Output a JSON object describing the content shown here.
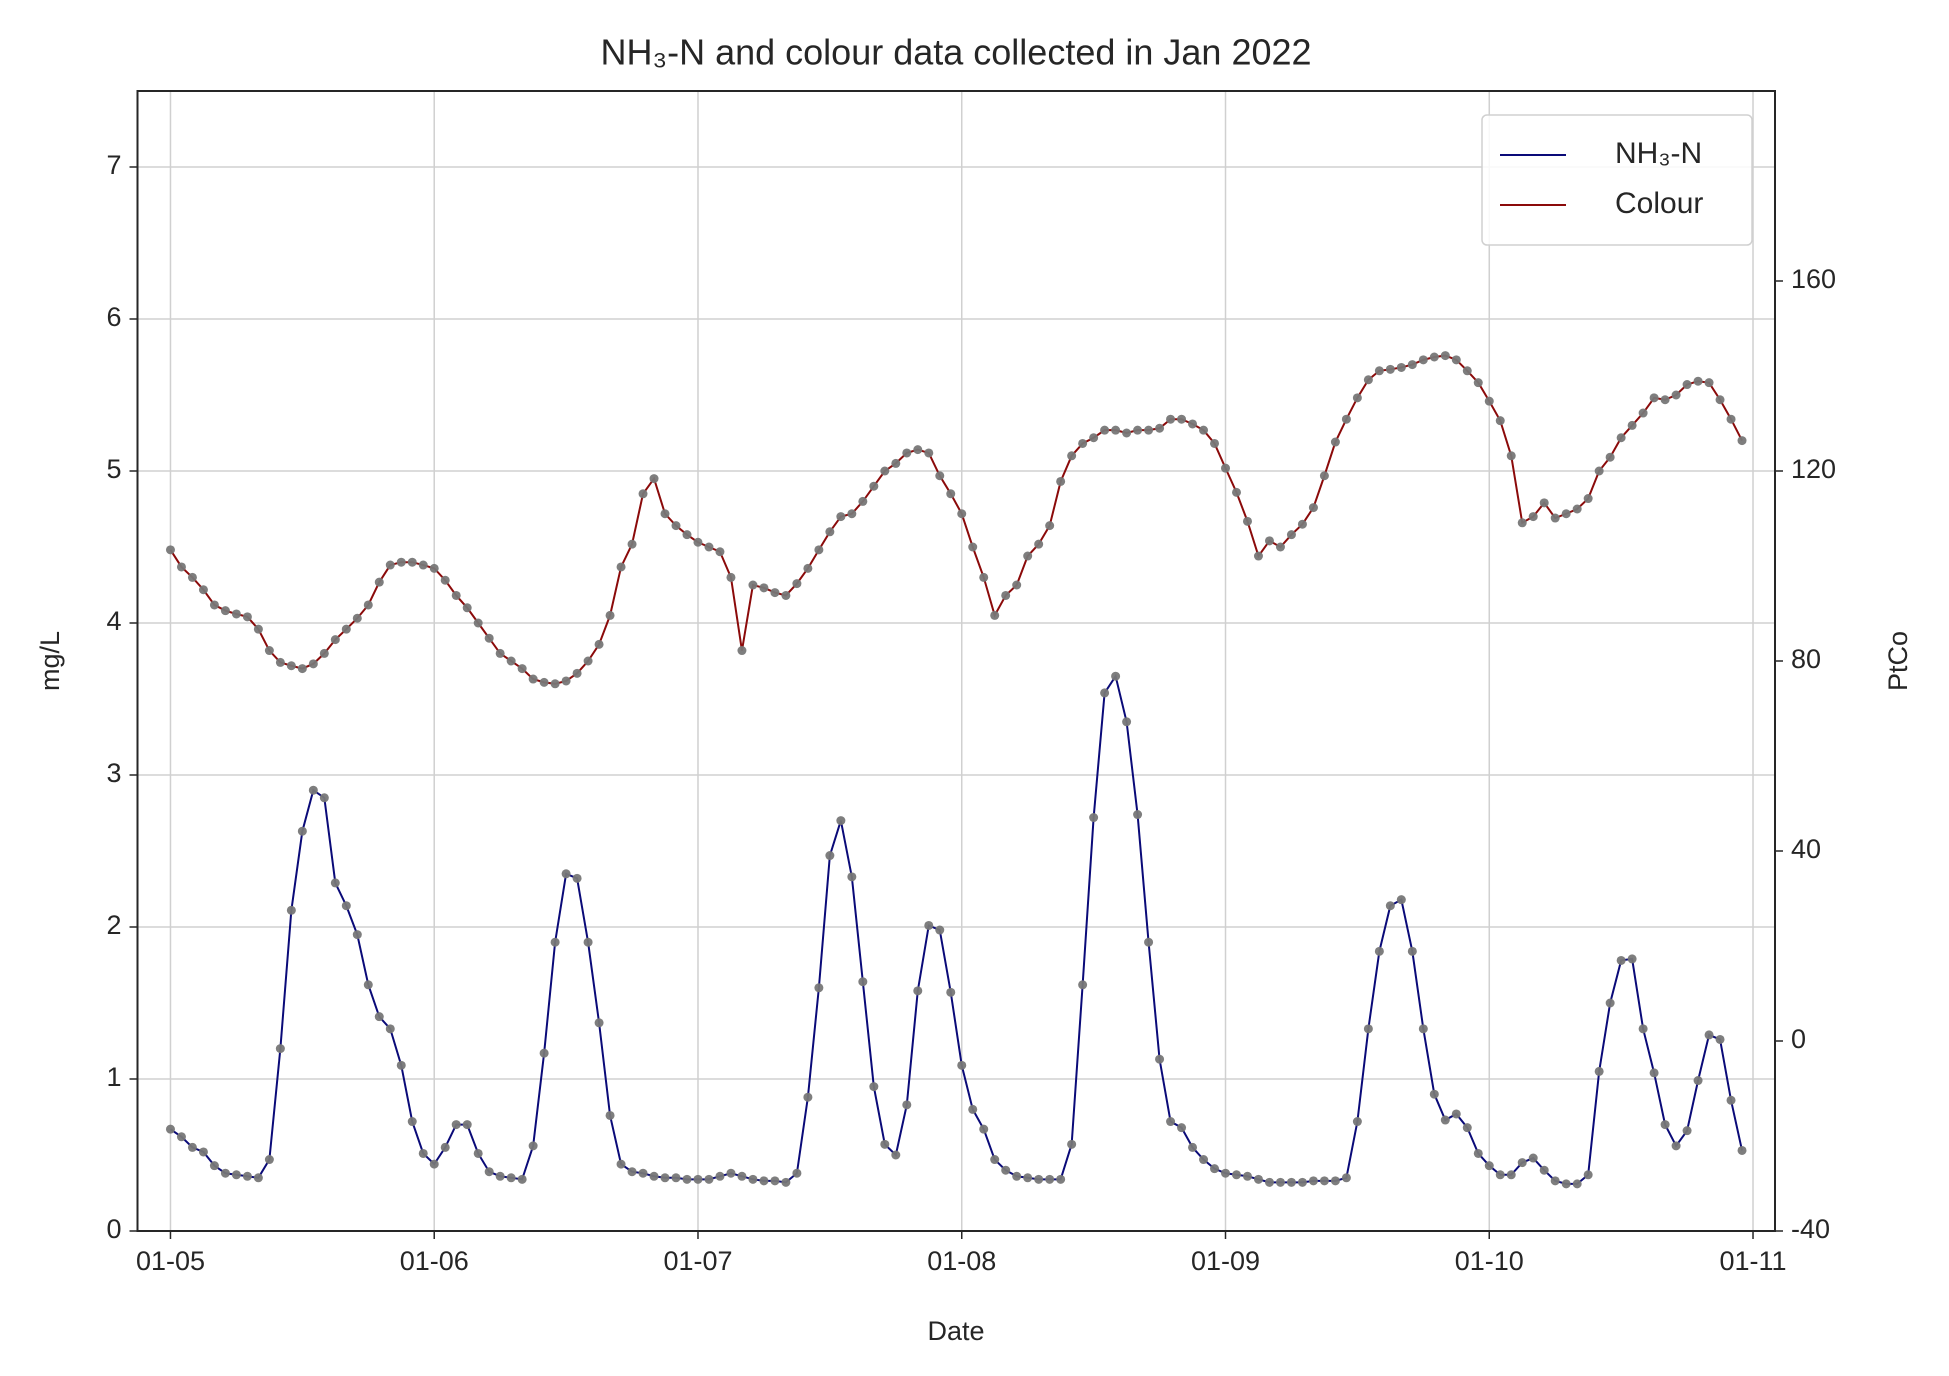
{
  "chart_data": {
    "type": "line",
    "title": "NH₃-N and colour data collected in Jan 2022",
    "xlabel": "Date",
    "ylabel": "mg/L",
    "y2label": "PtCo",
    "x": [
      0,
      1,
      2,
      3,
      4,
      5,
      6,
      7,
      8,
      9,
      10,
      11,
      12,
      13,
      14,
      15,
      16,
      17,
      18,
      19,
      20,
      21,
      22,
      23,
      24,
      25,
      26,
      27,
      28,
      29,
      30,
      31,
      32,
      33,
      34,
      35,
      36,
      37,
      38,
      39,
      40,
      41,
      42,
      43,
      44,
      45,
      46,
      47,
      48,
      49,
      50,
      51,
      52,
      53,
      54,
      55,
      56,
      57,
      58,
      59,
      60,
      61,
      62,
      63,
      64,
      65,
      66,
      67,
      68,
      69,
      70,
      71,
      72,
      73,
      74,
      75,
      76,
      77,
      78,
      79,
      80,
      81,
      82,
      83,
      84,
      85,
      86,
      87,
      88,
      89,
      90,
      91,
      92,
      93,
      94,
      95,
      96,
      97,
      98,
      99,
      100,
      101,
      102,
      103,
      104,
      105,
      106,
      107,
      108,
      109,
      110,
      111,
      112,
      113,
      114,
      115,
      116,
      117,
      118,
      119,
      120,
      121,
      122,
      123,
      124,
      125,
      126,
      127,
      128,
      129,
      130,
      131,
      132,
      133,
      134,
      135,
      136,
      137,
      138,
      139,
      140,
      141,
      142,
      143
    ],
    "xlim": [
      -3,
      146
    ],
    "xticks": [
      {
        "value": 0,
        "label": "01-05"
      },
      {
        "value": 24,
        "label": "01-06"
      },
      {
        "value": 48,
        "label": "01-07"
      },
      {
        "value": 72,
        "label": "01-08"
      },
      {
        "value": 96,
        "label": "01-09"
      },
      {
        "value": 120,
        "label": "01-10"
      },
      {
        "value": 144,
        "label": "01-11"
      }
    ],
    "ylim": [
      0,
      7.5
    ],
    "yticks": [
      0,
      1,
      2,
      3,
      4,
      5,
      6,
      7
    ],
    "y2lim": [
      -40,
      200
    ],
    "y2ticks": [
      -40,
      0,
      40,
      80,
      120,
      160
    ],
    "grid": true,
    "legend": "upper right",
    "marker_color": "#777777",
    "series": [
      {
        "name": "NH₃-N",
        "color": "#0a0a78",
        "values": [
          0.67,
          0.62,
          0.55,
          0.52,
          0.43,
          0.38,
          0.37,
          0.36,
          0.35,
          0.47,
          1.2,
          2.11,
          2.63,
          2.9,
          2.85,
          2.29,
          2.14,
          1.95,
          1.62,
          1.41,
          1.33,
          1.09,
          0.72,
          0.51,
          0.44,
          0.55,
          0.7,
          0.7,
          0.51,
          0.39,
          0.36,
          0.35,
          0.34,
          0.56,
          1.17,
          1.9,
          2.35,
          2.32,
          1.9,
          1.37,
          0.76,
          0.44,
          0.39,
          0.38,
          0.36,
          0.35,
          0.35,
          0.34,
          0.34,
          0.34,
          0.36,
          0.38,
          0.36,
          0.34,
          0.33,
          0.33,
          0.32,
          0.38,
          0.88,
          1.6,
          2.47,
          2.7,
          2.33,
          1.64,
          0.95,
          0.57,
          0.5,
          0.83,
          1.58,
          2.01,
          1.98,
          1.57,
          1.09,
          0.8,
          0.67,
          0.47,
          0.4,
          0.36,
          0.35,
          0.34,
          0.34,
          0.34,
          0.57,
          1.62,
          2.72,
          3.54,
          3.65,
          3.35,
          2.74,
          1.9,
          1.13,
          0.72,
          0.68,
          0.55,
          0.47,
          0.41,
          0.38,
          0.37,
          0.36,
          0.34,
          0.32,
          0.32,
          0.32,
          0.32,
          0.33,
          0.33,
          0.33,
          0.35,
          0.72,
          1.33,
          1.84,
          2.14,
          2.18,
          1.84,
          1.33,
          0.9,
          0.73,
          0.77,
          0.68,
          0.51,
          0.43,
          0.37,
          0.37,
          0.45,
          0.48,
          0.4,
          0.33,
          0.31,
          0.31,
          0.37,
          1.05,
          1.5,
          1.78,
          1.79,
          1.33,
          1.04,
          0.7,
          0.56,
          0.66,
          0.99,
          1.29,
          1.26,
          0.86,
          0.53
        ]
      },
      {
        "name": "Colour",
        "color": "#8b0a0a",
        "axis": "y2",
        "values": [
          103.4,
          99.8,
          97.6,
          95.0,
          91.8,
          90.6,
          89.9,
          89.3,
          86.7,
          82.2,
          79.7,
          79.0,
          78.4,
          79.4,
          81.6,
          84.5,
          86.7,
          89.0,
          91.8,
          96.6,
          100.2,
          100.8,
          100.8,
          100.2,
          99.5,
          97.0,
          93.8,
          91.2,
          88.0,
          84.8,
          81.6,
          80.0,
          78.4,
          76.2,
          75.5,
          75.2,
          75.8,
          77.4,
          80.0,
          83.5,
          89.6,
          99.8,
          104.6,
          115.2,
          118.4,
          111.0,
          108.5,
          106.6,
          105.0,
          104.0,
          103.0,
          97.6,
          82.2,
          96.0,
          95.4,
          94.4,
          93.8,
          96.3,
          99.5,
          103.4,
          107.2,
          110.4,
          111.0,
          113.6,
          116.8,
          120.0,
          121.6,
          123.8,
          124.5,
          123.8,
          119.0,
          115.2,
          111.0,
          104.0,
          97.6,
          89.6,
          93.8,
          96.0,
          102.1,
          104.6,
          108.5,
          117.8,
          123.2,
          125.8,
          127.0,
          128.6,
          128.6,
          128.0,
          128.6,
          128.6,
          129.0,
          130.9,
          130.9,
          129.9,
          128.6,
          125.8,
          120.6,
          115.5,
          109.4,
          102.1,
          105.3,
          104.0,
          106.6,
          108.8,
          112.3,
          119.0,
          126.1,
          130.9,
          135.4,
          139.2,
          141.1,
          141.4,
          141.8,
          142.4,
          143.4,
          144.0,
          144.3,
          143.4,
          141.1,
          138.6,
          134.7,
          130.6,
          123.2,
          109.1,
          110.4,
          113.3,
          110.1,
          111.0,
          112.0,
          114.2,
          120.0,
          122.9,
          127.0,
          129.6,
          132.2,
          135.4,
          135.0,
          136.0,
          138.2,
          138.9,
          138.6,
          135.0,
          130.9,
          126.4
        ]
      }
    ]
  }
}
